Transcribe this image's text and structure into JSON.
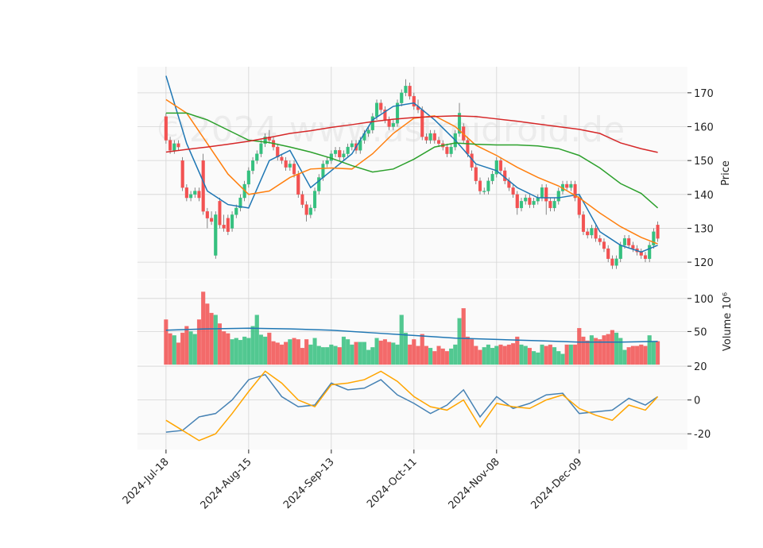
{
  "chart_data": [
    {
      "type": "candlestick",
      "ylabel": "Price",
      "watermark": "©2024 www.astroidroid.de",
      "xlim": [
        -6.9,
        126.2
      ],
      "ylim": [
        115.1,
        177.7
      ],
      "yticks": [
        120,
        130,
        140,
        150,
        160,
        170
      ],
      "grid": true,
      "up_color": "#35c07f",
      "down_color": "#f25252",
      "open": [
        163,
        156,
        153,
        155,
        150,
        142,
        139,
        140,
        141,
        150,
        135,
        133,
        122,
        138,
        131,
        133,
        130,
        134,
        136,
        139,
        143,
        147,
        150,
        152,
        155,
        157,
        156,
        154,
        151,
        150,
        148,
        149,
        146,
        140,
        137,
        134,
        136,
        141,
        145,
        149,
        150,
        152,
        153,
        151,
        152,
        154,
        155,
        153,
        156,
        158,
        159,
        163,
        167,
        165,
        162,
        160,
        161,
        167,
        170,
        172,
        169,
        166,
        165,
        157,
        156,
        158,
        156,
        155,
        154,
        152,
        154,
        158,
        160,
        156,
        152,
        148,
        144,
        141,
        141,
        144,
        146,
        150,
        147,
        144,
        142,
        140,
        136,
        138,
        139,
        137,
        138,
        139,
        142,
        138,
        136,
        138,
        141,
        143,
        142,
        143,
        139,
        134,
        129,
        128,
        130,
        127,
        126,
        124,
        121,
        119,
        121,
        125,
        127,
        125,
        124,
        123,
        122,
        121,
        125,
        131
      ],
      "high": [
        164,
        157,
        156,
        156,
        151,
        143,
        141,
        142,
        142,
        152,
        136,
        135,
        135,
        139,
        134,
        134,
        135,
        137,
        140,
        144,
        148,
        151,
        153,
        156,
        158,
        159,
        157,
        155,
        152,
        151,
        150,
        150,
        147,
        141,
        138,
        137,
        142,
        146,
        150,
        151,
        153,
        154,
        154,
        153,
        155,
        156,
        156,
        157,
        159,
        160,
        164,
        168,
        168,
        166,
        163,
        162,
        168,
        171,
        174,
        173,
        170,
        168,
        166,
        158,
        159,
        159,
        157,
        156,
        155,
        155,
        159,
        167,
        161,
        157,
        153,
        149,
        145,
        142,
        145,
        147,
        151,
        151,
        148,
        145,
        143,
        141,
        139,
        140,
        140,
        139,
        140,
        143,
        143,
        139,
        139,
        142,
        144,
        144,
        144,
        144,
        140,
        135,
        130,
        131,
        131,
        128,
        127,
        125,
        122,
        122,
        126,
        128,
        128,
        126,
        125,
        124,
        123,
        126,
        130,
        132
      ],
      "low": [
        155,
        152,
        152,
        153,
        141,
        138,
        138,
        139,
        138,
        134,
        130,
        131,
        121,
        130,
        129,
        128,
        129,
        133,
        135,
        138,
        142,
        146,
        149,
        151,
        154,
        155,
        153,
        150,
        149,
        147,
        147,
        145,
        139,
        136,
        132,
        133,
        135,
        140,
        144,
        148,
        149,
        151,
        150,
        150,
        151,
        153,
        152,
        152,
        155,
        157,
        158,
        162,
        164,
        161,
        159,
        159,
        160,
        166,
        169,
        168,
        165,
        164,
        156,
        155,
        155,
        155,
        154,
        153,
        151,
        151,
        153,
        157,
        155,
        151,
        147,
        143,
        140,
        140,
        140,
        143,
        145,
        146,
        143,
        141,
        139,
        134,
        135,
        137,
        136,
        136,
        137,
        138,
        134,
        135,
        135,
        137,
        140,
        141,
        141,
        138,
        133,
        128,
        127,
        127,
        126,
        125,
        123,
        120,
        118,
        118,
        120,
        124,
        124,
        123,
        122,
        121,
        120,
        120,
        124,
        126
      ],
      "close": [
        156,
        153,
        155,
        154,
        142,
        139,
        140,
        141,
        139,
        135,
        133,
        132,
        134,
        131,
        130,
        129,
        134,
        136,
        139,
        143,
        147,
        150,
        152,
        155,
        157,
        156,
        154,
        151,
        150,
        148,
        149,
        146,
        140,
        137,
        134,
        136,
        141,
        145,
        149,
        150,
        152,
        153,
        151,
        152,
        154,
        155,
        153,
        156,
        158,
        159,
        163,
        167,
        165,
        162,
        160,
        161,
        167,
        170,
        172,
        169,
        166,
        165,
        157,
        156,
        158,
        156,
        155,
        154,
        152,
        154,
        158,
        164,
        156,
        152,
        148,
        144,
        141,
        141,
        144,
        146,
        150,
        147,
        144,
        142,
        140,
        136,
        138,
        139,
        137,
        138,
        139,
        142,
        138,
        136,
        138,
        141,
        143,
        142,
        143,
        139,
        134,
        129,
        128,
        130,
        127,
        126,
        124,
        121,
        119,
        121,
        125,
        127,
        125,
        124,
        123,
        122,
        121,
        125,
        129,
        127
      ],
      "series": [
        {
          "color": "#1f77b4",
          "x": [
            0,
            5,
            10,
            15,
            20,
            25,
            30,
            35,
            40,
            45,
            50,
            55,
            60,
            65,
            70,
            75,
            80,
            85,
            90,
            95,
            100,
            105,
            110,
            115,
            119
          ],
          "values": [
            175,
            155,
            141,
            137,
            136,
            150,
            153,
            142,
            147,
            152,
            162,
            166,
            167,
            162,
            156,
            149,
            147,
            142,
            139,
            139,
            140,
            129,
            125,
            123,
            125
          ]
        },
        {
          "color": "#ff7f0e",
          "x": [
            0,
            5,
            10,
            15,
            20,
            25,
            30,
            35,
            40,
            45,
            50,
            55,
            60,
            65,
            70,
            75,
            80,
            85,
            90,
            95,
            100,
            105,
            110,
            115,
            119
          ],
          "values": [
            168,
            164,
            155,
            146,
            140,
            141,
            145,
            147.5,
            147.8,
            147.5,
            152,
            158,
            162.5,
            163.2,
            160,
            154.5,
            151.5,
            148,
            145,
            142.5,
            139,
            134.5,
            130.5,
            127.3,
            125.4
          ]
        },
        {
          "color": "#2ca02c",
          "x": [
            0,
            5,
            10,
            15,
            20,
            25,
            30,
            35,
            40,
            45,
            50,
            55,
            60,
            65,
            70,
            75,
            80,
            85,
            90,
            95,
            100,
            105,
            110,
            115,
            119
          ],
          "values": [
            164,
            164,
            162,
            159,
            156,
            155.3,
            154,
            152.5,
            150.7,
            148.5,
            146.6,
            147.5,
            150.4,
            154,
            155.2,
            154.8,
            154.6,
            154.6,
            154.3,
            153.5,
            151.5,
            147.8,
            143.2,
            140.3,
            136
          ]
        },
        {
          "color": "#d62728",
          "x": [
            0,
            5,
            10,
            15,
            20,
            25,
            30,
            35,
            40,
            45,
            50,
            55,
            60,
            65,
            70,
            75,
            80,
            85,
            90,
            95,
            100,
            105,
            110,
            115,
            119
          ],
          "values": [
            152.5,
            153.3,
            154,
            154.8,
            155.7,
            156.8,
            158,
            158.8,
            159.8,
            160.6,
            161.5,
            162.2,
            162.7,
            163,
            163.2,
            163,
            162.3,
            161.6,
            160.8,
            160,
            159.2,
            158,
            155.2,
            153.5,
            152.4
          ]
        }
      ]
    },
    {
      "type": "bar",
      "ylabel": "Volume  10⁶",
      "xlim": [
        -6.9,
        126.2
      ],
      "ylim": [
        0,
        128.6
      ],
      "yticks": [
        50,
        100
      ],
      "grid": true,
      "values": [
        68,
        47,
        44,
        33,
        48,
        58,
        50,
        46,
        68,
        110,
        92,
        78,
        75,
        62,
        50,
        47,
        38,
        40,
        37,
        42,
        40,
        58,
        75,
        45,
        42,
        48,
        35,
        33,
        30,
        34,
        38,
        40,
        38,
        25,
        38,
        30,
        40,
        28,
        26,
        26,
        30,
        28,
        26,
        42,
        38,
        30,
        34,
        34,
        34,
        22,
        26,
        40,
        36,
        38,
        34,
        33,
        30,
        75,
        48,
        30,
        38,
        28,
        46,
        28,
        25,
        20,
        28,
        24,
        20,
        24,
        30,
        70,
        85,
        42,
        38,
        28,
        22,
        26,
        30,
        25,
        28,
        30,
        28,
        30,
        32,
        42,
        30,
        28,
        25,
        20,
        18,
        30,
        28,
        30,
        26,
        20,
        16,
        30,
        30,
        30,
        55,
        42,
        36,
        44,
        40,
        38,
        44,
        46,
        52,
        48,
        40,
        22,
        26,
        28,
        28,
        30,
        28,
        44,
        35,
        35
      ],
      "series": [
        {
          "color": "#1f77b4",
          "x": [
            0,
            10,
            20,
            30,
            40,
            50,
            60,
            70,
            80,
            90,
            100,
            110,
            119
          ],
          "values": [
            52,
            54,
            55,
            54,
            52,
            48,
            44,
            40,
            38,
            36,
            34,
            34,
            35
          ]
        }
      ]
    },
    {
      "type": "line",
      "xlim": [
        -6.9,
        126.2
      ],
      "ylim": [
        -29.3,
        20.5
      ],
      "yticks": [
        -20,
        0,
        20
      ],
      "grid": true,
      "xticks": [
        {
          "value": 0,
          "label": "2024-Jul-18"
        },
        {
          "value": 20,
          "label": "2024-Aug-15"
        },
        {
          "value": 40,
          "label": "2024-Sep-13"
        },
        {
          "value": 60,
          "label": "2024-Oct-11"
        },
        {
          "value": 80,
          "label": "2024-Nov-08"
        },
        {
          "value": 100,
          "label": "2024-Dec-09"
        }
      ],
      "series": [
        {
          "color": "#4682b4",
          "x": [
            0,
            4,
            8,
            12,
            16,
            20,
            24,
            28,
            32,
            36,
            40,
            44,
            48,
            52,
            56,
            60,
            64,
            68,
            72,
            76,
            80,
            84,
            88,
            92,
            96,
            100,
            104,
            108,
            112,
            116,
            119
          ],
          "values": [
            -19,
            -18,
            -10,
            -8,
            0,
            12,
            15,
            2,
            -4,
            -3,
            10,
            6,
            7,
            12,
            3,
            -2,
            -8,
            -3,
            6,
            -10,
            2,
            -5,
            -2,
            3,
            4,
            -8,
            -7,
            -6,
            1,
            -3,
            2
          ]
        },
        {
          "color": "#ffa500",
          "x": [
            0,
            4,
            8,
            12,
            16,
            20,
            24,
            28,
            32,
            36,
            40,
            44,
            48,
            52,
            56,
            60,
            64,
            68,
            72,
            76,
            80,
            84,
            88,
            92,
            96,
            100,
            104,
            108,
            112,
            116,
            119
          ],
          "values": [
            -12,
            -18,
            -24,
            -20,
            -8,
            5,
            17,
            10,
            0,
            -4,
            9,
            10,
            12,
            17,
            11,
            2,
            -4,
            -6,
            0,
            -16,
            -2,
            -4,
            -5,
            0,
            3,
            -5,
            -9,
            -12,
            -3,
            -6,
            2
          ]
        }
      ]
    }
  ]
}
